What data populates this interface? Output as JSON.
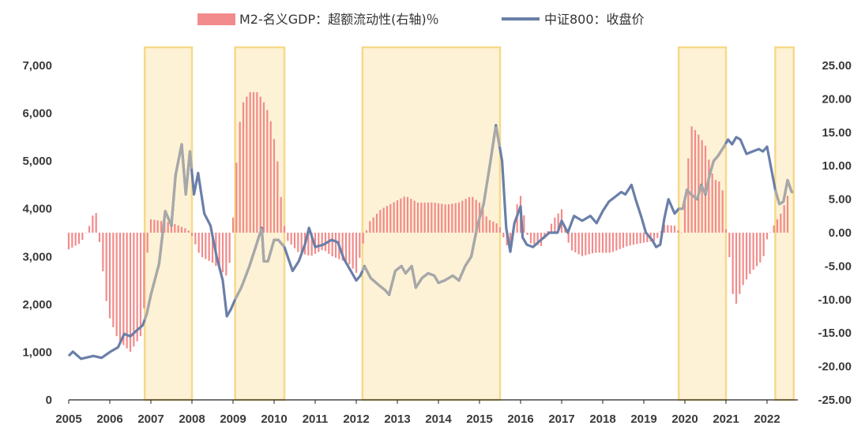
{
  "chart_data": {
    "type": "bar+line",
    "title": "",
    "legend": {
      "placement": "top",
      "items": [
        {
          "key": "bar",
          "label": "M2-名义GDP：超额流动性(右轴)％",
          "color": "#f28b8b"
        },
        {
          "key": "line",
          "label": "中证800：收盘价",
          "color": "#6a7fa8"
        }
      ]
    },
    "x_axis": {
      "ticks": [
        "2005",
        "2006",
        "2007",
        "2008",
        "2009",
        "2010",
        "2011",
        "2012",
        "2013",
        "2014",
        "2015",
        "2016",
        "2017",
        "2018",
        "2019",
        "2020",
        "2021",
        "2022"
      ]
    },
    "y_left": {
      "ylim": [
        0,
        7000
      ],
      "ticks": [
        "0",
        "1,000",
        "2,000",
        "3,000",
        "4,000",
        "5,000",
        "6,000",
        "7,000"
      ]
    },
    "y_right": {
      "ylim": [
        -25,
        25
      ],
      "ticks": [
        "-25.00",
        "-20.00",
        "-15.00",
        "-10.00",
        "-5.00",
        "0.00",
        "5.00",
        "10.00",
        "15.00",
        "20.00",
        "25.00"
      ]
    },
    "shaded_periods": [
      [
        2006.85,
        2008.0
      ],
      [
        2009.05,
        2010.25
      ],
      [
        2012.15,
        2015.5
      ],
      [
        2019.85,
        2021.0
      ],
      [
        2022.2,
        2022.65
      ]
    ],
    "excess_liquidity_series": {
      "name": "M2-名义GDP：超额流动性(右轴)％",
      "points": [
        [
          2005.0,
          -2.5
        ],
        [
          2005.3,
          -1.5
        ],
        [
          2005.5,
          1
        ],
        [
          2005.65,
          3.8
        ],
        [
          2005.8,
          -4
        ],
        [
          2005.95,
          -12
        ],
        [
          2006.2,
          -16
        ],
        [
          2006.5,
          -17.8
        ],
        [
          2006.8,
          -15
        ],
        [
          2006.9,
          -4
        ],
        [
          2007.0,
          2
        ],
        [
          2007.5,
          1.5
        ],
        [
          2007.9,
          0.5
        ],
        [
          2008.0,
          -0.5
        ],
        [
          2008.2,
          -3.5
        ],
        [
          2008.5,
          -4.5
        ],
        [
          2008.85,
          -6.5
        ],
        [
          2008.95,
          -3.5
        ],
        [
          2009.05,
          8
        ],
        [
          2009.2,
          19
        ],
        [
          2009.4,
          21
        ],
        [
          2009.6,
          21
        ],
        [
          2009.8,
          19
        ],
        [
          2009.95,
          16
        ],
        [
          2010.1,
          10
        ],
        [
          2010.2,
          3
        ],
        [
          2010.3,
          -1
        ],
        [
          2010.6,
          -3
        ],
        [
          2010.9,
          -3.5
        ],
        [
          2011.2,
          -2.5
        ],
        [
          2011.4,
          -3.5
        ],
        [
          2011.8,
          -4.5
        ],
        [
          2012.0,
          -6
        ],
        [
          2012.15,
          -2
        ],
        [
          2012.3,
          1.5
        ],
        [
          2012.6,
          3.5
        ],
        [
          2012.9,
          4.5
        ],
        [
          2013.2,
          5.5
        ],
        [
          2013.5,
          4.5
        ],
        [
          2013.9,
          4.5
        ],
        [
          2014.2,
          4.2
        ],
        [
          2014.5,
          4.5
        ],
        [
          2014.8,
          5.5
        ],
        [
          2015.0,
          4.5
        ],
        [
          2015.2,
          2
        ],
        [
          2015.4,
          1.5
        ],
        [
          2015.5,
          0.8
        ],
        [
          2015.6,
          -1
        ],
        [
          2015.75,
          -3
        ],
        [
          2015.9,
          4
        ],
        [
          2016.0,
          5.5
        ],
        [
          2016.2,
          -1.5
        ],
        [
          2016.5,
          -2
        ],
        [
          2016.8,
          2
        ],
        [
          2017.0,
          3.5
        ],
        [
          2017.2,
          -2.5
        ],
        [
          2017.5,
          -3.5
        ],
        [
          2017.8,
          -3
        ],
        [
          2018.2,
          -3
        ],
        [
          2018.6,
          -2
        ],
        [
          2019.0,
          -1.5
        ],
        [
          2019.3,
          -1.2
        ],
        [
          2019.5,
          1.2
        ],
        [
          2019.8,
          1
        ],
        [
          2019.9,
          -1
        ],
        [
          2020.0,
          5
        ],
        [
          2020.15,
          16
        ],
        [
          2020.3,
          15
        ],
        [
          2020.5,
          13
        ],
        [
          2020.7,
          8
        ],
        [
          2020.9,
          7.5
        ],
        [
          2021.0,
          0.5
        ],
        [
          2021.1,
          -4.5
        ],
        [
          2021.2,
          -11.5
        ],
        [
          2021.4,
          -8
        ],
        [
          2021.6,
          -6
        ],
        [
          2021.9,
          -4
        ],
        [
          2022.0,
          -1
        ],
        [
          2022.2,
          1.5
        ],
        [
          2022.35,
          3
        ],
        [
          2022.5,
          5.5
        ]
      ]
    },
    "csi800_series": {
      "name": "中证800：收盘价",
      "points": [
        [
          2005.0,
          920
        ],
        [
          2005.1,
          1010
        ],
        [
          2005.3,
          860
        ],
        [
          2005.6,
          920
        ],
        [
          2005.8,
          880
        ],
        [
          2006.0,
          1000
        ],
        [
          2006.2,
          1100
        ],
        [
          2006.35,
          1380
        ],
        [
          2006.5,
          1330
        ],
        [
          2006.65,
          1450
        ],
        [
          2006.8,
          1560
        ],
        [
          2006.9,
          1800
        ],
        [
          2007.0,
          2200
        ],
        [
          2007.2,
          2850
        ],
        [
          2007.35,
          3950
        ],
        [
          2007.5,
          3650
        ],
        [
          2007.6,
          4700
        ],
        [
          2007.75,
          5350
        ],
        [
          2007.85,
          4300
        ],
        [
          2007.95,
          5200
        ],
        [
          2008.05,
          4300
        ],
        [
          2008.15,
          4750
        ],
        [
          2008.3,
          3900
        ],
        [
          2008.45,
          3650
        ],
        [
          2008.6,
          3000
        ],
        [
          2008.75,
          2500
        ],
        [
          2008.85,
          1750
        ],
        [
          2008.95,
          1900
        ],
        [
          2009.05,
          2100
        ],
        [
          2009.2,
          2350
        ],
        [
          2009.4,
          2800
        ],
        [
          2009.55,
          3200
        ],
        [
          2009.7,
          3600
        ],
        [
          2009.75,
          2900
        ],
        [
          2009.85,
          2900
        ],
        [
          2010.0,
          3350
        ],
        [
          2010.1,
          3350
        ],
        [
          2010.25,
          3200
        ],
        [
          2010.45,
          2700
        ],
        [
          2010.6,
          2900
        ],
        [
          2010.75,
          3250
        ],
        [
          2010.85,
          3600
        ],
        [
          2011.0,
          3200
        ],
        [
          2011.2,
          3250
        ],
        [
          2011.4,
          3350
        ],
        [
          2011.55,
          3300
        ],
        [
          2011.7,
          2950
        ],
        [
          2011.9,
          2650
        ],
        [
          2012.0,
          2500
        ],
        [
          2012.1,
          2600
        ],
        [
          2012.2,
          2800
        ],
        [
          2012.35,
          2550
        ],
        [
          2012.55,
          2400
        ],
        [
          2012.7,
          2300
        ],
        [
          2012.8,
          2200
        ],
        [
          2012.95,
          2700
        ],
        [
          2013.1,
          2800
        ],
        [
          2013.2,
          2650
        ],
        [
          2013.35,
          2800
        ],
        [
          2013.45,
          2350
        ],
        [
          2013.6,
          2550
        ],
        [
          2013.75,
          2650
        ],
        [
          2013.9,
          2600
        ],
        [
          2014.0,
          2450
        ],
        [
          2014.15,
          2500
        ],
        [
          2014.35,
          2600
        ],
        [
          2014.5,
          2500
        ],
        [
          2014.65,
          2800
        ],
        [
          2014.8,
          3000
        ],
        [
          2014.95,
          3650
        ],
        [
          2015.1,
          4100
        ],
        [
          2015.25,
          4900
        ],
        [
          2015.4,
          5750
        ],
        [
          2015.55,
          5000
        ],
        [
          2015.65,
          3600
        ],
        [
          2015.75,
          3100
        ],
        [
          2015.85,
          3700
        ],
        [
          2016.0,
          4050
        ],
        [
          2016.05,
          3400
        ],
        [
          2016.15,
          3250
        ],
        [
          2016.3,
          3200
        ],
        [
          2016.5,
          3350
        ],
        [
          2016.7,
          3500
        ],
        [
          2016.9,
          3500
        ],
        [
          2017.0,
          3750
        ],
        [
          2017.15,
          3500
        ],
        [
          2017.3,
          3850
        ],
        [
          2017.5,
          3750
        ],
        [
          2017.7,
          3850
        ],
        [
          2017.85,
          3700
        ],
        [
          2018.0,
          3950
        ],
        [
          2018.15,
          4150
        ],
        [
          2018.3,
          4250
        ],
        [
          2018.45,
          4350
        ],
        [
          2018.55,
          4300
        ],
        [
          2018.7,
          4500
        ],
        [
          2018.8,
          4200
        ],
        [
          2018.95,
          3800
        ],
        [
          2019.05,
          3500
        ],
        [
          2019.2,
          3350
        ],
        [
          2019.3,
          3200
        ],
        [
          2019.4,
          3250
        ],
        [
          2019.5,
          3800
        ],
        [
          2019.6,
          4200
        ],
        [
          2019.75,
          3900
        ],
        [
          2019.85,
          4000
        ],
        [
          2019.95,
          4000
        ],
        [
          2020.05,
          4400
        ],
        [
          2020.15,
          4300
        ],
        [
          2020.3,
          4200
        ],
        [
          2020.4,
          4500
        ],
        [
          2020.5,
          4300
        ],
        [
          2020.6,
          4700
        ],
        [
          2020.7,
          5000
        ],
        [
          2020.8,
          5100
        ],
        [
          2020.95,
          5300
        ],
        [
          2021.05,
          5450
        ],
        [
          2021.15,
          5350
        ],
        [
          2021.25,
          5500
        ],
        [
          2021.35,
          5450
        ],
        [
          2021.5,
          5150
        ],
        [
          2021.65,
          5200
        ],
        [
          2021.8,
          5250
        ],
        [
          2021.9,
          5200
        ],
        [
          2022.0,
          5300
        ],
        [
          2022.1,
          4850
        ],
        [
          2022.2,
          4400
        ],
        [
          2022.3,
          4100
        ],
        [
          2022.4,
          4150
        ],
        [
          2022.5,
          4600
        ],
        [
          2022.6,
          4350
        ]
      ]
    }
  }
}
